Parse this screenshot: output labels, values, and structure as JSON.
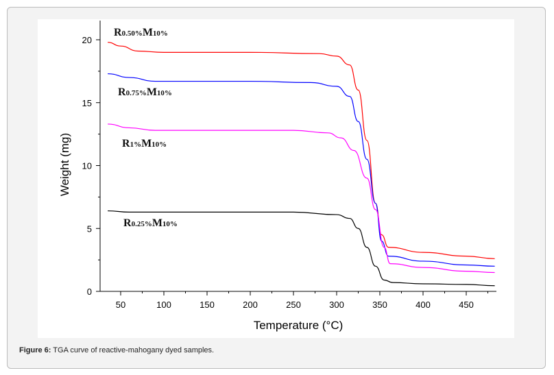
{
  "chart_data": {
    "type": "line",
    "title": "",
    "xlabel": "Temperature (°C)",
    "ylabel": "Weight (mg)",
    "xlim": [
      26,
      484
    ],
    "ylim": [
      0,
      21.5
    ],
    "xticks": [
      50,
      100,
      150,
      200,
      250,
      300,
      350,
      400,
      450
    ],
    "yticks": [
      0,
      5,
      10,
      15,
      20
    ],
    "grid": false,
    "series": [
      {
        "name": "R0.50%M10%",
        "label_main": "R",
        "label_sub1": "0.50%",
        "label_main2": "M",
        "label_sub2": "10%",
        "color": "#ff0000",
        "x": [
          35,
          50,
          70,
          100,
          200,
          280,
          300,
          315,
          325,
          335,
          345,
          352,
          360,
          400,
          450,
          483
        ],
        "y": [
          19.8,
          19.5,
          19.1,
          19.0,
          19.0,
          18.9,
          18.7,
          18.0,
          16.0,
          12.0,
          7.0,
          4.5,
          3.5,
          3.1,
          2.8,
          2.6
        ]
      },
      {
        "name": "R0.75%M10%",
        "label_main": "R",
        "label_sub1": "0.75%",
        "label_main2": "M",
        "label_sub2": "10%",
        "color": "#0000ff",
        "x": [
          35,
          60,
          90,
          200,
          270,
          300,
          315,
          325,
          335,
          345,
          352,
          360,
          400,
          450,
          483
        ],
        "y": [
          17.3,
          17.0,
          16.7,
          16.7,
          16.6,
          16.3,
          15.5,
          13.5,
          10.5,
          7.0,
          4.0,
          2.8,
          2.4,
          2.1,
          2.0
        ]
      },
      {
        "name": "R1%M10%",
        "label_main": "R",
        "label_sub1": "1%",
        "label_main2": "M",
        "label_sub2": "10%",
        "color": "#ff00ff",
        "x": [
          35,
          60,
          90,
          250,
          290,
          305,
          320,
          335,
          345,
          355,
          362,
          400,
          450,
          483
        ],
        "y": [
          13.3,
          13.0,
          12.8,
          12.8,
          12.6,
          12.2,
          11.2,
          9.0,
          6.5,
          3.5,
          2.2,
          1.9,
          1.6,
          1.5
        ]
      },
      {
        "name": "R0.25%M10%",
        "label_main": "R",
        "label_sub1": "0.25%",
        "label_main2": "M",
        "label_sub2": "10%",
        "color": "#000000",
        "x": [
          35,
          60,
          250,
          300,
          315,
          325,
          335,
          345,
          355,
          365,
          400,
          450,
          483
        ],
        "y": [
          6.4,
          6.3,
          6.3,
          6.1,
          5.8,
          5.0,
          3.5,
          2.0,
          0.9,
          0.7,
          0.6,
          0.55,
          0.45
        ]
      }
    ],
    "annotations_order": [
      "R0.50%M10%",
      "R0.75%M10%",
      "R1%M10%",
      "R0.25%M10%"
    ]
  },
  "caption": {
    "label": "Figure 6:",
    "text": " TGA curve of reactive-mahogany dyed samples."
  }
}
